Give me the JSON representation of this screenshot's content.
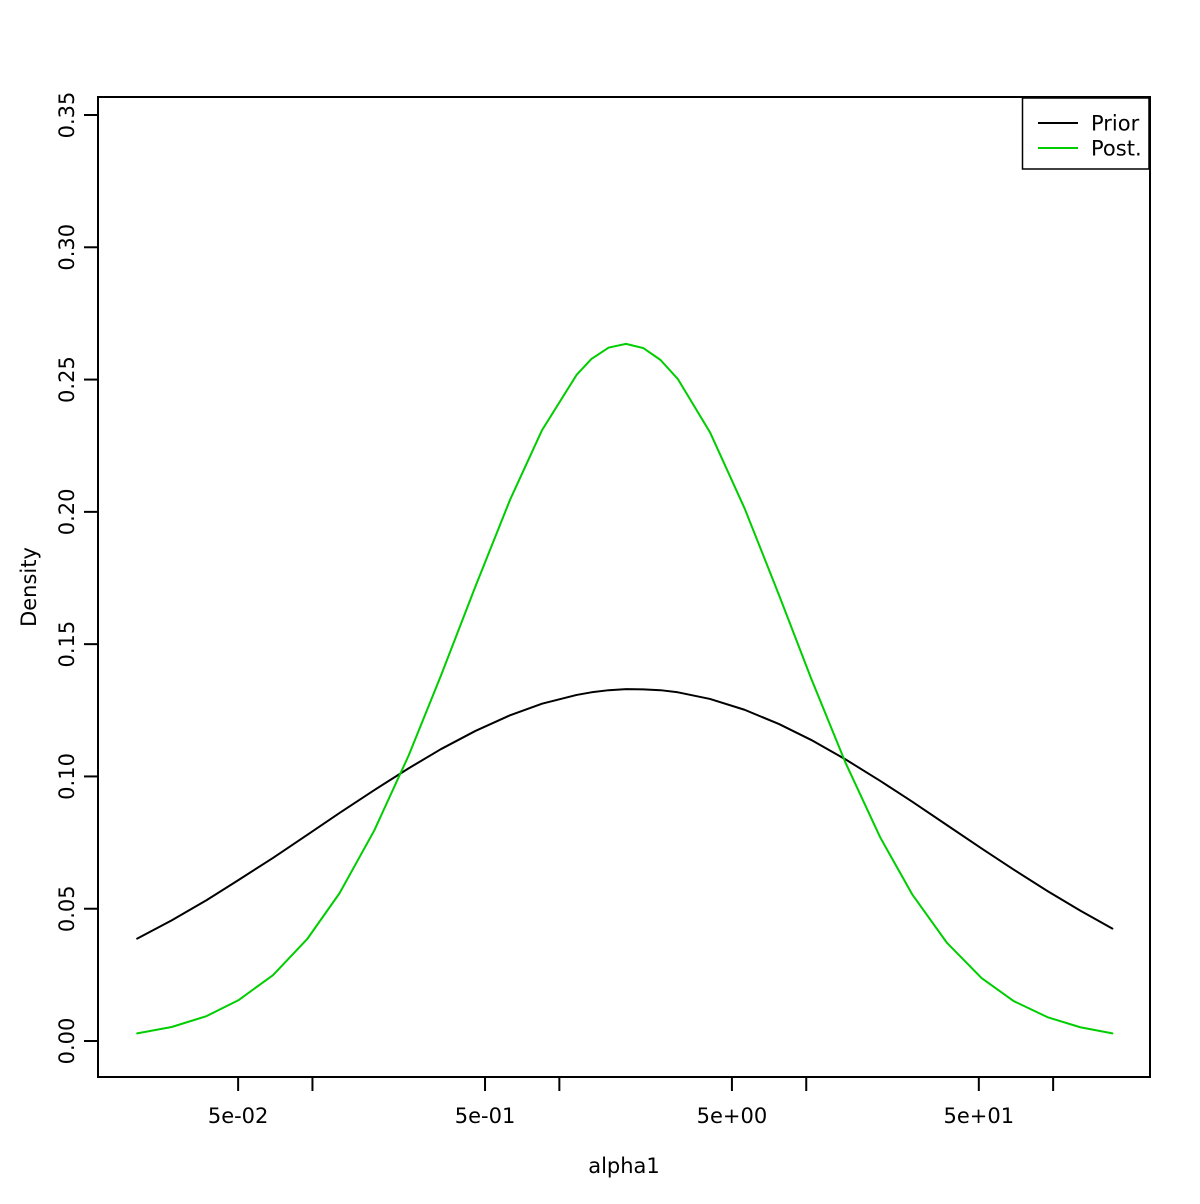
{
  "page": {
    "background": "#ffffff"
  },
  "chart_data": {
    "type": "line",
    "title": "",
    "xlabel": "alpha1",
    "ylabel": "Density",
    "x_scale": "log10",
    "xlim_log10": [
      -1.8686,
      2.3923
    ],
    "ylim": [
      -0.0136,
      0.3568
    ],
    "grid": false,
    "box": true,
    "legend_position": "topright",
    "x_ticks": [
      {
        "value": 0.05,
        "label": "5e-02"
      },
      {
        "value": 0.1,
        "label": ""
      },
      {
        "value": 0.5,
        "label": "5e-01"
      },
      {
        "value": 1,
        "label": ""
      },
      {
        "value": 5,
        "label": "5e+00"
      },
      {
        "value": 10,
        "label": ""
      },
      {
        "value": 50,
        "label": "5e+01"
      },
      {
        "value": 100,
        "label": ""
      }
    ],
    "y_ticks": [
      {
        "value": 0.0,
        "label": "0.00"
      },
      {
        "value": 0.05,
        "label": "0.05"
      },
      {
        "value": 0.1,
        "label": "0.10"
      },
      {
        "value": 0.15,
        "label": "0.15"
      },
      {
        "value": 0.2,
        "label": "0.20"
      },
      {
        "value": 0.25,
        "label": "0.25"
      },
      {
        "value": 0.3,
        "label": "0.30"
      },
      {
        "value": 0.35,
        "label": "0.35"
      }
    ],
    "series": [
      {
        "name": "Prior",
        "color": "#000000",
        "x": [
          0.0195,
          0.0269,
          0.0372,
          0.0501,
          0.0692,
          0.0955,
          0.1288,
          0.1778,
          0.2455,
          0.3311,
          0.4571,
          0.631,
          0.8511,
          1.175,
          1.349,
          1.585,
          1.862,
          2.188,
          2.57,
          3.02,
          4.074,
          5.623,
          7.762,
          10.47,
          14.45,
          19.95,
          26.92,
          37.15,
          51.29,
          69.18,
          95.5,
          128.8,
          173.8
        ],
        "y": [
          0.0387,
          0.0456,
          0.0532,
          0.0608,
          0.0692,
          0.078,
          0.0862,
          0.0948,
          0.1031,
          0.1103,
          0.1172,
          0.1231,
          0.1275,
          0.1308,
          0.1318,
          0.1326,
          0.133,
          0.1329,
          0.1326,
          0.1318,
          0.1293,
          0.1252,
          0.1198,
          0.1138,
          0.1064,
          0.0983,
          0.0904,
          0.0816,
          0.0728,
          0.0648,
          0.0565,
          0.0493,
          0.0425
        ]
      },
      {
        "name": "Post.",
        "color": "#00CD00",
        "x": [
          0.0195,
          0.0269,
          0.0372,
          0.0501,
          0.0692,
          0.0955,
          0.1288,
          0.1778,
          0.2455,
          0.3311,
          0.4571,
          0.631,
          0.8511,
          1.175,
          1.349,
          1.585,
          1.862,
          2.188,
          2.57,
          3.02,
          4.074,
          5.623,
          7.762,
          10.47,
          14.45,
          19.95,
          26.92,
          37.15,
          51.29,
          69.18,
          95.5,
          128.8,
          173.8
        ],
        "y": [
          0.0029,
          0.0053,
          0.0094,
          0.0154,
          0.0249,
          0.0387,
          0.0559,
          0.0795,
          0.108,
          0.138,
          0.1718,
          0.2045,
          0.2309,
          0.2518,
          0.2578,
          0.2621,
          0.2635,
          0.2619,
          0.2574,
          0.2502,
          0.2301,
          0.2014,
          0.1685,
          0.137,
          0.105,
          0.0769,
          0.0553,
          0.0371,
          0.0238,
          0.0151,
          0.0089,
          0.0052,
          0.0029
        ]
      }
    ]
  }
}
